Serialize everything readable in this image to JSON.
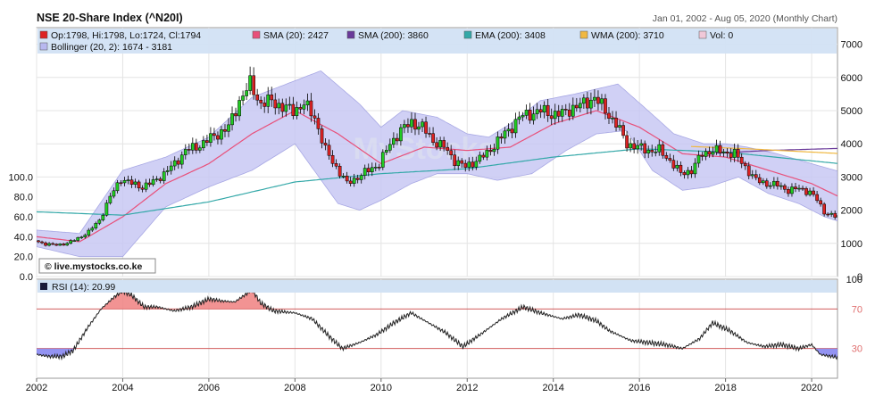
{
  "header": {
    "title": "NSE 20-Share Index (^N20I)",
    "date_range": "Jan 01, 2002  -  Aug 05, 2020 (Monthly Chart)"
  },
  "colors": {
    "candle_up": "#22cc22",
    "candle_down": "#dd2222",
    "sma20": "#e8507a",
    "sma200": "#6a3a9a",
    "ema200": "#33a8a8",
    "wma200": "#f0b840",
    "vol": "#f0c8d8",
    "bollinger": "#c8c8f4",
    "rsi": "#222222",
    "legend_bg": "#d2e2f4"
  },
  "legend": {
    "row1": [
      {
        "id": "ohlc",
        "label": "Op:1798, Hi:1798, Lo:1724, Cl:1794",
        "color": "#dd2222"
      },
      {
        "id": "sma20",
        "label": "SMA (20): 2427",
        "color": "#e8507a"
      },
      {
        "id": "sma200",
        "label": "SMA (200): 3860",
        "color": "#6a3a9a"
      },
      {
        "id": "ema200",
        "label": "EMA (200): 3408",
        "color": "#33a8a8"
      },
      {
        "id": "wma200",
        "label": "WMA (200): 3710",
        "color": "#f0b840"
      },
      {
        "id": "vol",
        "label": "Vol: 0",
        "color": "#f0c8d8"
      }
    ],
    "row2": [
      {
        "id": "boll",
        "label": "Bollinger (20, 2): 1674 - 3181",
        "color": "#b8b8f0"
      }
    ]
  },
  "watermark": "© live.mystocks.co.ke",
  "rsi_legend": "RSI (14): 20.99",
  "chart_data": [
    {
      "type": "line",
      "subtype": "candlestick-monthly",
      "title": "NSE 20-Share Index (^N20I)",
      "x_ticks": [
        "2002",
        "2004",
        "2006",
        "2008",
        "2010",
        "2012",
        "2014",
        "2016",
        "2018",
        "2020"
      ],
      "xlim": [
        2002.0,
        2020.6
      ],
      "ylim_price": [
        0,
        7500
      ],
      "y_ticks_right": [
        "0",
        "1000",
        "2000",
        "3000",
        "4000",
        "5000",
        "6000",
        "7000"
      ],
      "y_ticks_right_values": [
        0,
        1000,
        2000,
        3000,
        4000,
        5000,
        6000,
        7000
      ],
      "y_ticks_left": [
        "0.0",
        "20.0",
        "40.0",
        "60.0",
        "80.0",
        "100.0"
      ],
      "y_ticks_left_values": [
        0,
        20,
        40,
        60,
        80,
        100
      ],
      "ylim_volume": [
        0,
        250
      ],
      "grid": true,
      "legend_position": "top",
      "close": [
        [
          2002.0,
          1080
        ],
        [
          2002.25,
          980
        ],
        [
          2002.5,
          950
        ],
        [
          2002.75,
          1000
        ],
        [
          2003.0,
          1150
        ],
        [
          2003.25,
          1350
        ],
        [
          2003.5,
          1700
        ],
        [
          2003.75,
          2400
        ],
        [
          2004.0,
          2950
        ],
        [
          2004.25,
          2800
        ],
        [
          2004.5,
          2700
        ],
        [
          2004.75,
          2850
        ],
        [
          2005.0,
          3100
        ],
        [
          2005.25,
          3400
        ],
        [
          2005.5,
          3800
        ],
        [
          2005.75,
          3900
        ],
        [
          2006.0,
          4100
        ],
        [
          2006.25,
          4300
        ],
        [
          2006.5,
          4500
        ],
        [
          2006.75,
          5300
        ],
        [
          2007.0,
          5800
        ],
        [
          2007.25,
          5200
        ],
        [
          2007.5,
          5300
        ],
        [
          2007.75,
          5100
        ],
        [
          2008.0,
          5000
        ],
        [
          2008.25,
          5200
        ],
        [
          2008.5,
          4800
        ],
        [
          2008.75,
          3800
        ],
        [
          2009.0,
          3300
        ],
        [
          2009.25,
          2800
        ],
        [
          2009.5,
          3000
        ],
        [
          2009.75,
          3200
        ],
        [
          2010.0,
          3400
        ],
        [
          2010.25,
          4000
        ],
        [
          2010.5,
          4400
        ],
        [
          2010.75,
          4650
        ],
        [
          2011.0,
          4500
        ],
        [
          2011.25,
          4100
        ],
        [
          2011.5,
          3900
        ],
        [
          2011.75,
          3500
        ],
        [
          2012.0,
          3300
        ],
        [
          2012.25,
          3500
        ],
        [
          2012.5,
          3700
        ],
        [
          2012.75,
          4100
        ],
        [
          2013.0,
          4400
        ],
        [
          2013.25,
          4800
        ],
        [
          2013.5,
          4900
        ],
        [
          2013.75,
          5000
        ],
        [
          2014.0,
          4900
        ],
        [
          2014.25,
          4900
        ],
        [
          2014.5,
          5100
        ],
        [
          2014.75,
          5200
        ],
        [
          2015.0,
          5400
        ],
        [
          2015.25,
          5000
        ],
        [
          2015.5,
          4600
        ],
        [
          2015.75,
          4000
        ],
        [
          2016.0,
          3900
        ],
        [
          2016.25,
          3800
        ],
        [
          2016.5,
          3800
        ],
        [
          2016.75,
          3500
        ],
        [
          2017.0,
          3100
        ],
        [
          2017.25,
          3200
        ],
        [
          2017.5,
          3700
        ],
        [
          2017.75,
          3800
        ],
        [
          2018.0,
          3750
        ],
        [
          2018.25,
          3700
        ],
        [
          2018.5,
          3300
        ],
        [
          2018.75,
          2900
        ],
        [
          2019.0,
          2800
        ],
        [
          2019.25,
          2750
        ],
        [
          2019.5,
          2600
        ],
        [
          2019.75,
          2650
        ],
        [
          2020.0,
          2550
        ],
        [
          2020.17,
          2300
        ],
        [
          2020.33,
          1950
        ],
        [
          2020.6,
          1794
        ]
      ],
      "series": [
        {
          "name": "SMA (20)",
          "values": [
            [
              2002.0,
              1200
            ],
            [
              2003.0,
              1050
            ],
            [
              2004.0,
              1800
            ],
            [
              2005.0,
              2800
            ],
            [
              2006.0,
              3400
            ],
            [
              2007.0,
              4300
            ],
            [
              2008.0,
              5000
            ],
            [
              2009.0,
              4300
            ],
            [
              2010.0,
              3400
            ],
            [
              2011.0,
              3900
            ],
            [
              2012.0,
              3800
            ],
            [
              2013.0,
              3900
            ],
            [
              2014.0,
              4600
            ],
            [
              2015.0,
              5000
            ],
            [
              2016.0,
              4500
            ],
            [
              2017.0,
              3700
            ],
            [
              2018.0,
              3600
            ],
            [
              2019.0,
              3200
            ],
            [
              2020.0,
              2800
            ],
            [
              2020.6,
              2427
            ]
          ]
        },
        {
          "name": "SMA (200)",
          "values": [
            [
              2017.8,
              3720
            ],
            [
              2019.0,
              3800
            ],
            [
              2020.6,
              3860
            ]
          ]
        },
        {
          "name": "EMA (200)",
          "values": [
            [
              2002.0,
              1950
            ],
            [
              2004.0,
              1850
            ],
            [
              2006.0,
              2250
            ],
            [
              2008.0,
              2850
            ],
            [
              2010.0,
              3100
            ],
            [
              2012.0,
              3250
            ],
            [
              2014.0,
              3600
            ],
            [
              2016.0,
              3850
            ],
            [
              2018.0,
              3750
            ],
            [
              2020.6,
              3408
            ]
          ]
        },
        {
          "name": "WMA (200)",
          "values": [
            [
              2017.2,
              3920
            ],
            [
              2018.5,
              3850
            ],
            [
              2020.6,
              3710
            ]
          ]
        },
        {
          "name": "Bollinger (20, 2) upper",
          "values": [
            [
              2002.0,
              1400
            ],
            [
              2003.0,
              1300
            ],
            [
              2004.0,
              3200
            ],
            [
              2005.0,
              3600
            ],
            [
              2006.0,
              4200
            ],
            [
              2007.0,
              5400
            ],
            [
              2008.0,
              5900
            ],
            [
              2008.6,
              6200
            ],
            [
              2009.5,
              5200
            ],
            [
              2010.0,
              4500
            ],
            [
              2010.5,
              5000
            ],
            [
              2011.3,
              4800
            ],
            [
              2012.0,
              4300
            ],
            [
              2012.5,
              4200
            ],
            [
              2013.0,
              4600
            ],
            [
              2013.7,
              5300
            ],
            [
              2014.5,
              5500
            ],
            [
              2015.5,
              5800
            ],
            [
              2016.2,
              5000
            ],
            [
              2016.8,
              4300
            ],
            [
              2017.5,
              4000
            ],
            [
              2018.0,
              4000
            ],
            [
              2018.5,
              3900
            ],
            [
              2019.2,
              3700
            ],
            [
              2020.0,
              3400
            ],
            [
              2020.6,
              3181
            ]
          ]
        },
        {
          "name": "Bollinger (20, 2) lower",
          "values": [
            [
              2002.0,
              900
            ],
            [
              2003.0,
              600
            ],
            [
              2004.0,
              600
            ],
            [
              2005.0,
              2100
            ],
            [
              2006.0,
              2700
            ],
            [
              2007.0,
              3200
            ],
            [
              2008.0,
              4000
            ],
            [
              2009.0,
              2200
            ],
            [
              2009.5,
              2000
            ],
            [
              2010.0,
              2300
            ],
            [
              2010.7,
              2800
            ],
            [
              2011.3,
              3100
            ],
            [
              2012.0,
              3100
            ],
            [
              2012.7,
              2900
            ],
            [
              2013.5,
              3100
            ],
            [
              2014.3,
              3800
            ],
            [
              2015.0,
              4300
            ],
            [
              2015.7,
              4400
            ],
            [
              2016.3,
              3200
            ],
            [
              2017.0,
              2600
            ],
            [
              2017.6,
              2700
            ],
            [
              2018.3,
              3000
            ],
            [
              2019.0,
              2500
            ],
            [
              2019.7,
              2200
            ],
            [
              2020.3,
              1800
            ],
            [
              2020.6,
              1674
            ]
          ]
        }
      ]
    },
    {
      "type": "line",
      "title": "RSI (14)",
      "ylim": [
        0,
        100
      ],
      "y_ticks": [
        "30",
        "70",
        "100"
      ],
      "y_ticks_values": [
        30,
        70,
        100
      ],
      "overbought": 70,
      "oversold": 30,
      "series": [
        {
          "name": "RSI (14)",
          "values": [
            [
              2002.0,
              24
            ],
            [
              2002.3,
              22
            ],
            [
              2002.6,
              22
            ],
            [
              2002.85,
              28
            ],
            [
              2003.2,
              52
            ],
            [
              2003.5,
              70
            ],
            [
              2003.8,
              82
            ],
            [
              2004.0,
              88
            ],
            [
              2004.2,
              84
            ],
            [
              2004.5,
              72
            ],
            [
              2004.8,
              72
            ],
            [
              2005.2,
              68
            ],
            [
              2005.6,
              72
            ],
            [
              2006.0,
              80
            ],
            [
              2006.3,
              78
            ],
            [
              2006.6,
              77
            ],
            [
              2006.9,
              86
            ],
            [
              2007.0,
              90
            ],
            [
              2007.2,
              76
            ],
            [
              2007.5,
              68
            ],
            [
              2008.0,
              66
            ],
            [
              2008.4,
              60
            ],
            [
              2008.8,
              42
            ],
            [
              2009.1,
              30
            ],
            [
              2009.5,
              36
            ],
            [
              2009.9,
              44
            ],
            [
              2010.3,
              56
            ],
            [
              2010.7,
              66
            ],
            [
              2011.1,
              56
            ],
            [
              2011.5,
              46
            ],
            [
              2011.9,
              32
            ],
            [
              2012.3,
              44
            ],
            [
              2012.8,
              60
            ],
            [
              2013.3,
              72
            ],
            [
              2013.7,
              66
            ],
            [
              2014.2,
              60
            ],
            [
              2014.6,
              64
            ],
            [
              2015.0,
              58
            ],
            [
              2015.3,
              48
            ],
            [
              2015.8,
              38
            ],
            [
              2016.2,
              36
            ],
            [
              2016.6,
              34
            ],
            [
              2017.0,
              30
            ],
            [
              2017.4,
              40
            ],
            [
              2017.7,
              56
            ],
            [
              2018.1,
              48
            ],
            [
              2018.5,
              36
            ],
            [
              2018.9,
              32
            ],
            [
              2019.3,
              34
            ],
            [
              2019.7,
              30
            ],
            [
              2020.0,
              34
            ],
            [
              2020.2,
              24
            ],
            [
              2020.6,
              21
            ]
          ]
        }
      ]
    }
  ]
}
